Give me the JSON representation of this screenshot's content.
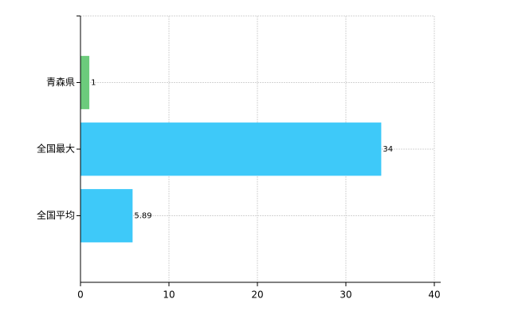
{
  "chart_data": {
    "type": "hbar",
    "categories": [
      "青森県",
      "全国最大",
      "全国平均"
    ],
    "values": [
      1,
      34,
      5.89
    ],
    "colors": [
      "#6ccb7c",
      "#3ec9f9",
      "#3ec9f9"
    ],
    "xlim": [
      0,
      40
    ],
    "xticks": [
      0,
      10,
      20,
      30,
      40
    ],
    "grid": true
  }
}
